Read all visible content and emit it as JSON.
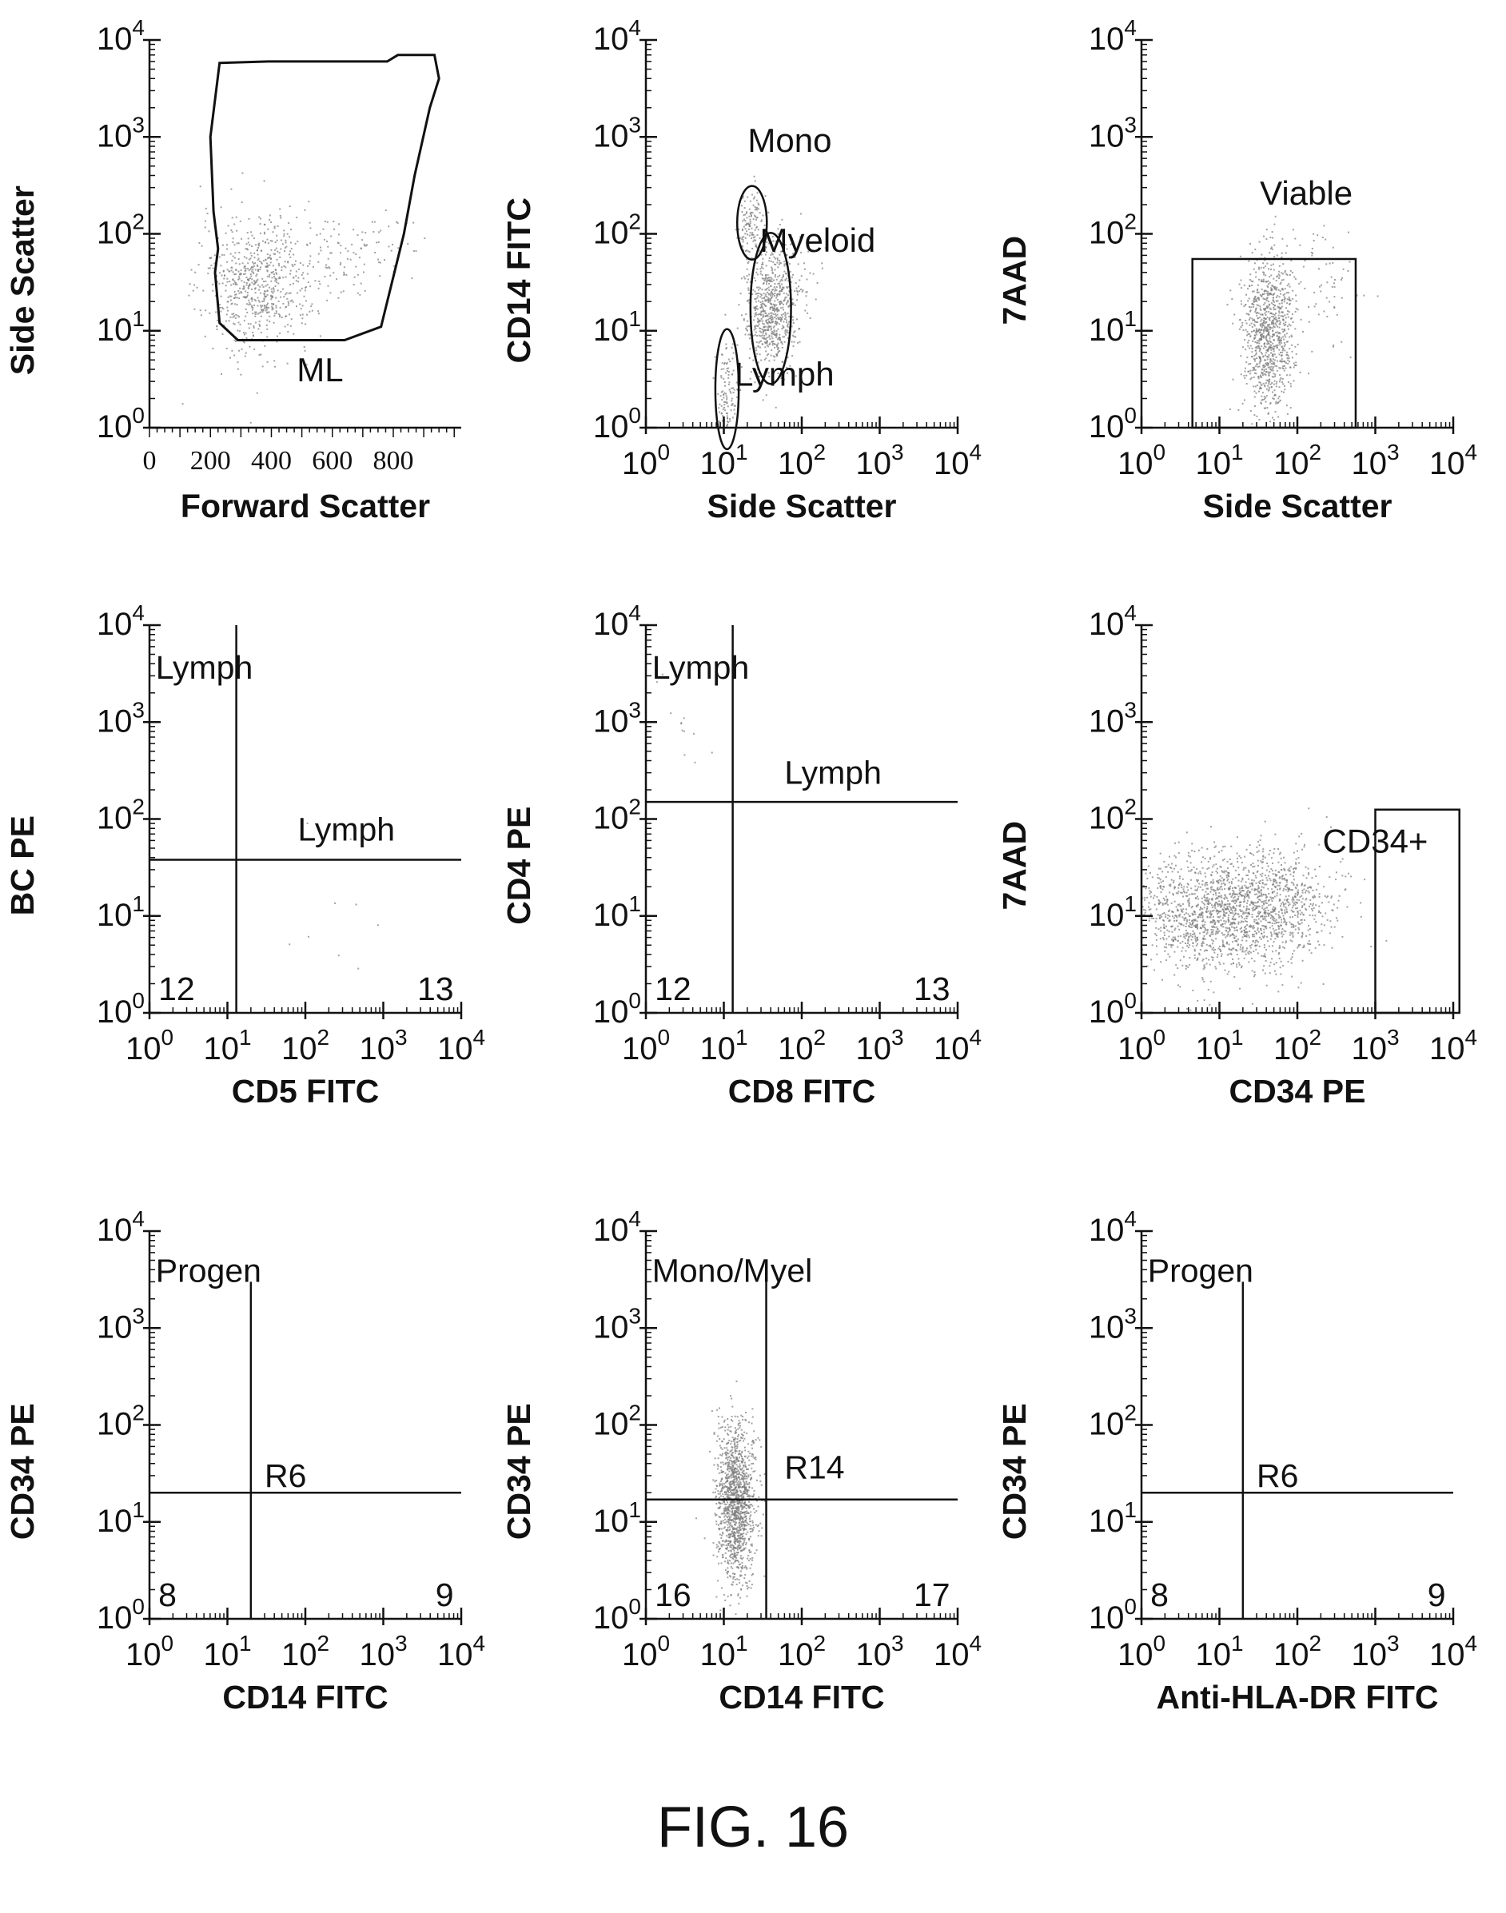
{
  "figure": {
    "caption": "FIG. 16"
  },
  "colors": {
    "ink": "#111111",
    "dots": "#7a7a7a"
  },
  "chart_data": [
    {
      "type": "scatter",
      "panel": "ss-vs-fs",
      "x_scale": "linear",
      "y_scale": "log",
      "xlim": [
        0,
        1023
      ],
      "ylim": [
        1,
        10000
      ],
      "xlabel": "Forward Scatter",
      "ylabel": "Side Scatter",
      "x_ticks": [
        "0",
        "200",
        "400",
        "600",
        "800"
      ],
      "y_ticks": [
        "10^0",
        "10^1",
        "10^2",
        "10^3",
        "10^4"
      ],
      "gates": [
        {
          "label": "ML",
          "shape": "polygon",
          "points": [
            [
              230,
              5800
            ],
            [
              390,
              6000
            ],
            [
              780,
              6000
            ],
            [
              815,
              7000
            ],
            [
              935,
              7000
            ],
            [
              950,
              4000
            ],
            [
              920,
              2000
            ],
            [
              870,
              400
            ],
            [
              835,
              100
            ],
            [
              760,
              11
            ],
            [
              640,
              8
            ],
            [
              290,
              8
            ],
            [
              230,
              12
            ],
            [
              215,
              40
            ],
            [
              225,
              70
            ],
            [
              210,
              170
            ],
            [
              200,
              1000
            ]
          ],
          "label_at": [
            560,
            3
          ]
        }
      ],
      "clusters": [
        {
          "x": [
            350,
            90
          ],
          "y": [
            30,
            0.35
          ],
          "n": 650
        },
        {
          "x": [
            550,
            100
          ],
          "y": [
            55,
            0.25
          ],
          "n": 110
        },
        {
          "x": [
            750,
            70
          ],
          "y": [
            90,
            0.15
          ],
          "n": 35
        }
      ]
    },
    {
      "type": "scatter",
      "panel": "cd14-vs-ss",
      "x_scale": "log",
      "y_scale": "log",
      "xlim": [
        1,
        10000
      ],
      "ylim": [
        1,
        10000
      ],
      "xlabel": "Side Scatter",
      "ylabel": "CD14 FITC",
      "x_ticks": [
        "10^0",
        "10^1",
        "10^2",
        "10^3",
        "10^4"
      ],
      "y_ticks": [
        "10^0",
        "10^1",
        "10^2",
        "10^3",
        "10^4"
      ],
      "gates": [
        {
          "label": "Mono",
          "shape": "ellipse",
          "center": [
            23,
            130
          ],
          "radii": [
            0.19,
            0.38
          ],
          "label_at": [
            70,
            700
          ]
        },
        {
          "label": "Myeloid",
          "shape": "ellipse",
          "center": [
            40,
            17
          ],
          "radii": [
            0.26,
            0.78
          ],
          "label_at": [
            160,
            65
          ]
        },
        {
          "label": "Lymph",
          "shape": "ellipse",
          "center": [
            11,
            2.5
          ],
          "radii": [
            0.15,
            0.62
          ],
          "label_at": [
            60,
            2.7
          ]
        }
      ],
      "clusters": [
        {
          "x": [
            40,
            0.17
          ],
          "y": [
            17,
            0.32
          ],
          "n": 700
        },
        {
          "x": [
            23,
            0.09
          ],
          "y": [
            130,
            0.18
          ],
          "n": 130
        },
        {
          "x": [
            11,
            0.07
          ],
          "y": [
            2.2,
            0.25
          ],
          "n": 120
        },
        {
          "x": [
            90,
            0.2
          ],
          "y": [
            45,
            0.25
          ],
          "n": 40
        }
      ]
    },
    {
      "type": "scatter",
      "panel": "7aad-vs-ss",
      "x_scale": "log",
      "y_scale": "log",
      "xlim": [
        1,
        10000
      ],
      "ylim": [
        1,
        10000
      ],
      "xlabel": "Side Scatter",
      "ylabel": "7AAD",
      "x_ticks": [
        "10^0",
        "10^1",
        "10^2",
        "10^3",
        "10^4"
      ],
      "y_ticks": [
        "10^0",
        "10^1",
        "10^2",
        "10^3",
        "10^4"
      ],
      "gates": [
        {
          "label": "Viable",
          "shape": "rect",
          "x": [
            4.5,
            560
          ],
          "y": [
            1,
            55
          ],
          "label_at": [
            130,
            200
          ]
        }
      ],
      "clusters": [
        {
          "x": [
            40,
            0.16
          ],
          "y": [
            9,
            0.4
          ],
          "n": 900
        },
        {
          "x": [
            150,
            0.35
          ],
          "y": [
            30,
            0.3
          ],
          "n": 90
        }
      ]
    },
    {
      "type": "scatter",
      "panel": "bcpe-vs-cd5",
      "x_scale": "log",
      "y_scale": "log",
      "xlim": [
        1,
        10000
      ],
      "ylim": [
        1,
        10000
      ],
      "xlabel": "CD5 FITC",
      "ylabel": "BC PE",
      "x_ticks": [
        "10^0",
        "10^1",
        "10^2",
        "10^3",
        "10^4"
      ],
      "y_ticks": [
        "10^0",
        "10^1",
        "10^2",
        "10^3",
        "10^4"
      ],
      "quadrant": {
        "x": 13,
        "y": 38
      },
      "labels": [
        {
          "text": "Lymph",
          "at": [
            1.2,
            2800
          ],
          "anchor": "start"
        },
        {
          "text": "Lymph",
          "at": [
            80,
            60
          ],
          "anchor": "start"
        },
        {
          "text": "12",
          "at": [
            1.3,
            1.35
          ],
          "anchor": "start"
        },
        {
          "text": "13",
          "at": [
            8000,
            1.35
          ],
          "anchor": "end"
        }
      ],
      "clusters": [
        {
          "x": [
            220,
            0.3
          ],
          "y": [
            6,
            0.5
          ],
          "n": 10
        }
      ]
    },
    {
      "type": "scatter",
      "panel": "cd4pe-vs-cd8",
      "x_scale": "log",
      "y_scale": "log",
      "xlim": [
        1,
        10000
      ],
      "ylim": [
        1,
        10000
      ],
      "xlabel": "CD8 FITC",
      "ylabel": "CD4 PE",
      "x_ticks": [
        "10^0",
        "10^1",
        "10^2",
        "10^3",
        "10^4"
      ],
      "y_ticks": [
        "10^0",
        "10^1",
        "10^2",
        "10^3",
        "10^4"
      ],
      "quadrant": {
        "x": 13,
        "y": 150
      },
      "labels": [
        {
          "text": "Lymph",
          "at": [
            1.2,
            2800
          ],
          "anchor": "start"
        },
        {
          "text": "Lymph",
          "at": [
            60,
            230
          ],
          "anchor": "start"
        },
        {
          "text": "12",
          "at": [
            1.3,
            1.35
          ],
          "anchor": "start"
        },
        {
          "text": "13",
          "at": [
            8000,
            1.35
          ],
          "anchor": "end"
        }
      ],
      "clusters": [
        {
          "x": [
            3,
            0.4
          ],
          "y": [
            900,
            0.3
          ],
          "n": 12
        }
      ]
    },
    {
      "type": "scatter",
      "panel": "7aad-vs-cd34",
      "x_scale": "log",
      "y_scale": "log",
      "xlim": [
        1,
        10000
      ],
      "ylim": [
        1,
        10000
      ],
      "xlabel": "CD34 PE",
      "ylabel": "7AAD",
      "x_ticks": [
        "10^0",
        "10^1",
        "10^2",
        "10^3",
        "10^4"
      ],
      "y_ticks": [
        "10^0",
        "10^1",
        "10^2",
        "10^3",
        "10^4"
      ],
      "gates": [
        {
          "label": "CD34+",
          "shape": "rect",
          "x": [
            1000,
            12000
          ],
          "y": [
            1,
            125
          ],
          "label_at": [
            1000,
            45
          ]
        }
      ],
      "clusters": [
        {
          "x": [
            12,
            0.6
          ],
          "y": [
            11,
            0.3
          ],
          "n": 1700
        },
        {
          "x": [
            60,
            0.3
          ],
          "y": [
            20,
            0.25
          ],
          "n": 250
        }
      ]
    },
    {
      "type": "scatter",
      "panel": "cd34-vs-cd14-a",
      "x_scale": "log",
      "y_scale": "log",
      "xlim": [
        1,
        10000
      ],
      "ylim": [
        1,
        10000
      ],
      "xlabel": "CD14 FITC",
      "ylabel": "CD34 PE",
      "x_ticks": [
        "10^0",
        "10^1",
        "10^2",
        "10^3",
        "10^4"
      ],
      "y_ticks": [
        "10^0",
        "10^1",
        "10^2",
        "10^3",
        "10^4"
      ],
      "quadrant": {
        "x": 20,
        "y": 20,
        "top": 3000
      },
      "labels": [
        {
          "text": "Progen",
          "at": [
            1.2,
            3000
          ],
          "anchor": "start"
        },
        {
          "text": "R6",
          "at": [
            30,
            23
          ],
          "anchor": "start"
        },
        {
          "text": "8",
          "at": [
            1.3,
            1.35
          ],
          "anchor": "start"
        },
        {
          "text": "9",
          "at": [
            8000,
            1.35
          ],
          "anchor": "end"
        }
      ],
      "clusters": []
    },
    {
      "type": "scatter",
      "panel": "cd34-vs-cd14-b",
      "x_scale": "log",
      "y_scale": "log",
      "xlim": [
        1,
        10000
      ],
      "ylim": [
        1,
        10000
      ],
      "xlabel": "CD14 FITC",
      "ylabel": "CD34 PE",
      "x_ticks": [
        "10^0",
        "10^1",
        "10^2",
        "10^3",
        "10^4"
      ],
      "y_ticks": [
        "10^0",
        "10^1",
        "10^2",
        "10^3",
        "10^4"
      ],
      "quadrant": {
        "x": 35,
        "y": 17,
        "top": 3000
      },
      "labels": [
        {
          "text": "Mono/Myel",
          "at": [
            1.2,
            3000
          ],
          "anchor": "start"
        },
        {
          "text": "R14",
          "at": [
            60,
            28
          ],
          "anchor": "start"
        },
        {
          "text": "16",
          "at": [
            1.3,
            1.35
          ],
          "anchor": "start"
        },
        {
          "text": "17",
          "at": [
            8000,
            1.35
          ],
          "anchor": "end"
        }
      ],
      "clusters": [
        {
          "x": [
            14,
            0.12
          ],
          "y": [
            16,
            0.4
          ],
          "n": 1300
        }
      ]
    },
    {
      "type": "scatter",
      "panel": "cd34-vs-hladr",
      "x_scale": "log",
      "y_scale": "log",
      "xlim": [
        1,
        10000
      ],
      "ylim": [
        1,
        10000
      ],
      "xlabel": "Anti-HLA-DR FITC",
      "ylabel": "CD34 PE",
      "x_ticks": [
        "10^0",
        "10^1",
        "10^2",
        "10^3",
        "10^4"
      ],
      "y_ticks": [
        "10^0",
        "10^1",
        "10^2",
        "10^3",
        "10^4"
      ],
      "quadrant": {
        "x": 20,
        "y": 20,
        "top": 3000
      },
      "labels": [
        {
          "text": "Progen",
          "at": [
            1.2,
            3000
          ],
          "anchor": "start"
        },
        {
          "text": "R6",
          "at": [
            30,
            23
          ],
          "anchor": "start"
        },
        {
          "text": "8",
          "at": [
            1.3,
            1.35
          ],
          "anchor": "start"
        },
        {
          "text": "9",
          "at": [
            8000,
            1.35
          ],
          "anchor": "end"
        }
      ],
      "clusters": []
    }
  ]
}
